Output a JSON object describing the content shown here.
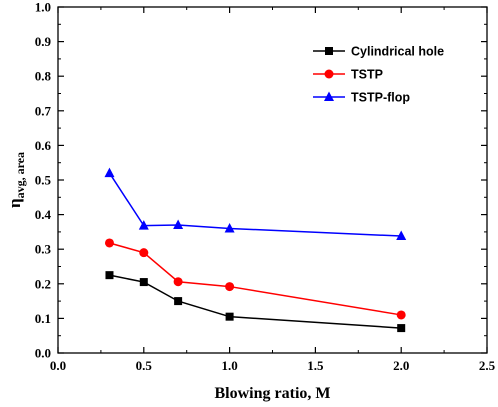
{
  "chart_data": {
    "type": "line",
    "xlabel": "Blowing ratio, M",
    "ylabel": {
      "main": "η",
      "sub": "avg, area"
    },
    "xlim": [
      0.0,
      2.5
    ],
    "ylim": [
      0.0,
      1.0
    ],
    "x_ticks": [
      0.0,
      0.5,
      1.0,
      1.5,
      2.0,
      2.5
    ],
    "x_tick_labels": [
      "0.0",
      "0.5",
      "1.0",
      "1.5",
      "2.0",
      "2.5"
    ],
    "y_ticks": [
      0.0,
      0.1,
      0.2,
      0.3,
      0.4,
      0.5,
      0.6,
      0.7,
      0.8,
      0.9,
      1.0
    ],
    "y_tick_labels": [
      "0.0",
      "0.1",
      "0.2",
      "0.3",
      "0.4",
      "0.5",
      "0.6",
      "0.7",
      "0.8",
      "0.9",
      "1.0"
    ],
    "grid": false,
    "legend_position": "top-right",
    "series": [
      {
        "name": "Cylindrical hole",
        "color": "#000000",
        "marker": "square",
        "x": [
          0.3,
          0.5,
          0.7,
          1.0,
          2.0
        ],
        "y": [
          0.225,
          0.205,
          0.15,
          0.105,
          0.072
        ]
      },
      {
        "name": "TSTP",
        "color": "#ff0000",
        "marker": "circle",
        "x": [
          0.3,
          0.5,
          0.7,
          1.0,
          2.0
        ],
        "y": [
          0.318,
          0.29,
          0.206,
          0.192,
          0.11
        ]
      },
      {
        "name": "TSTP-flop",
        "color": "#0000ff",
        "marker": "triangle",
        "x": [
          0.3,
          0.5,
          0.7,
          1.0,
          2.0
        ],
        "y": [
          0.52,
          0.368,
          0.37,
          0.36,
          0.338
        ]
      }
    ]
  }
}
